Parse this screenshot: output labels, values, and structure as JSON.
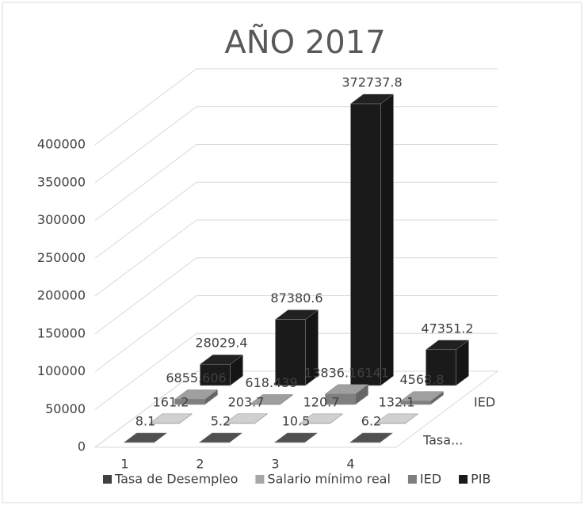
{
  "chart_data": {
    "type": "bar3d",
    "title": "AÑO 2017",
    "categories": [
      "1",
      "2",
      "3",
      "4"
    ],
    "series": [
      {
        "name": "Tasa de Desempleo",
        "color": "#404040",
        "values": [
          8.1,
          5.2,
          10.5,
          6.2
        ]
      },
      {
        "name": "Salario mínimo real",
        "color": "#a6a6a6",
        "values": [
          161.2,
          203.7,
          120.7,
          132.1
        ]
      },
      {
        "name": "IED",
        "color": "#7f7f7f",
        "values": [
          6855.606,
          618.439,
          13836.16141,
          4568.8
        ]
      },
      {
        "name": "PIB",
        "color": "#1a1a1a",
        "values": [
          28029.4,
          87380.6,
          372737.8,
          47351.2
        ]
      }
    ],
    "depth_labels": [
      "Tasa...",
      "IED"
    ],
    "ylim": [
      0,
      400000
    ],
    "yticks": [
      0,
      50000,
      100000,
      150000,
      200000,
      250000,
      300000,
      350000,
      400000
    ],
    "grid": true,
    "legend": "bottom"
  }
}
